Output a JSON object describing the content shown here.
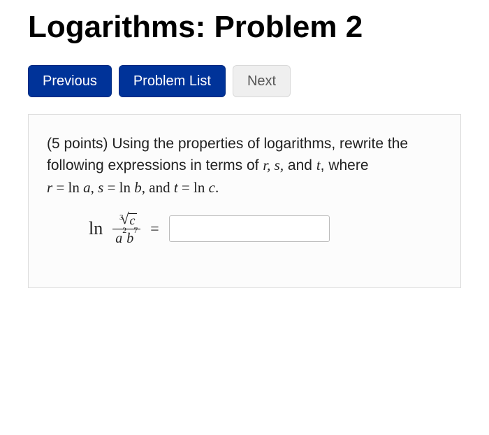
{
  "title": "Logarithms: Problem 2",
  "nav": {
    "previous": "Previous",
    "problemList": "Problem List",
    "next": "Next"
  },
  "problem": {
    "points": "(5 points)",
    "promptPart1": " Using the properties of logarithms, rewrite the following expressions in terms of ",
    "varsList": "r, s,",
    "promptPart2": " and ",
    "varT": "t",
    "promptPart3": ", where",
    "defs": {
      "r": "r",
      "eq1": " = ",
      "lna": "ln",
      "a": " a",
      "comma1": ", ",
      "s": "s",
      "eq2": " = ",
      "lnb": "ln",
      "b": " b",
      "comma2": ", and ",
      "t": "t",
      "eq3": " = ",
      "lnc": "ln",
      "c": " c",
      "period": "."
    },
    "equation": {
      "ln": "ln",
      "rootIndex": "3",
      "radicand": "c",
      "denBase1": "a",
      "denExp1": "2",
      "denBase2": "b",
      "denExp2": "7",
      "equals": "="
    },
    "answerValue": ""
  },
  "colors": {
    "primaryBtnBg": "#003399",
    "primaryBtnText": "#ffffff",
    "defaultBtnBg": "#efefef",
    "defaultBtnText": "#555555",
    "boxBorder": "#dddddd",
    "boxBg": "#fcfcfc",
    "inputBorder": "#bbbbbb",
    "text": "#000000"
  },
  "typography": {
    "titleFontSize": 44,
    "titleFontWeight": 700,
    "bodyFontSize": 21,
    "buttonFontSize": 20,
    "mathFontFamily": "Times New Roman"
  }
}
